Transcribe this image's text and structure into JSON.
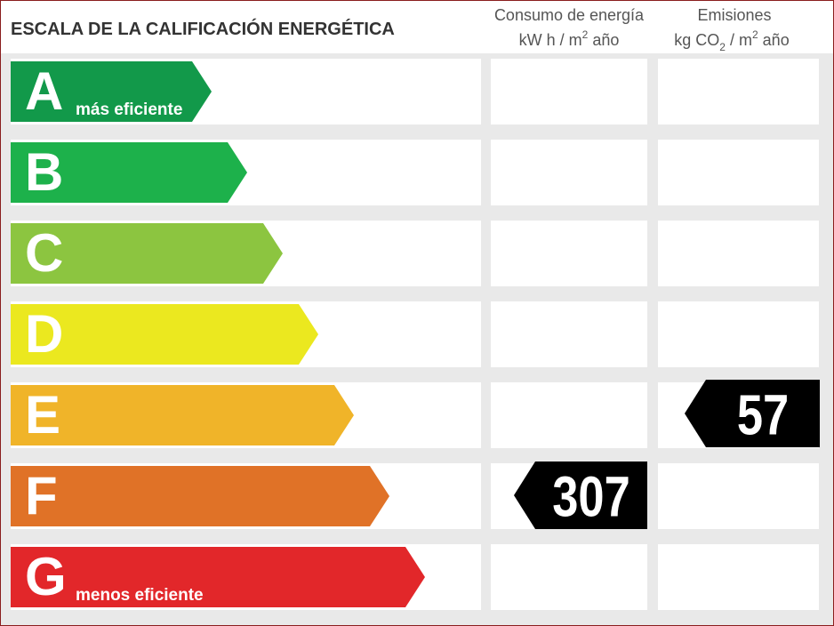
{
  "header": {
    "title": "ESCALA DE LA CALIFICACIÓN ENERGÉTICA"
  },
  "columns": [
    {
      "title": "Consumo de energía",
      "unit": [
        "kW h  / m",
        "2",
        " año"
      ]
    },
    {
      "title": "Emisiones",
      "unit": [
        "kg CO",
        "2",
        "  / m",
        "2",
        " año"
      ]
    }
  ],
  "rows": [
    {
      "letter": "A",
      "note": "más eficiente",
      "color": "#12994a"
    },
    {
      "letter": "B",
      "color": "#1db14b"
    },
    {
      "letter": "C",
      "color": "#8cc540"
    },
    {
      "letter": "D",
      "color": "#ebe81f"
    },
    {
      "letter": "E",
      "color": "#f0b429",
      "emissions": 57
    },
    {
      "letter": "F",
      "color": "#e07227",
      "consumption": 307
    },
    {
      "letter": "G",
      "note": "menos eficiente",
      "color": "#e2272a"
    }
  ]
}
